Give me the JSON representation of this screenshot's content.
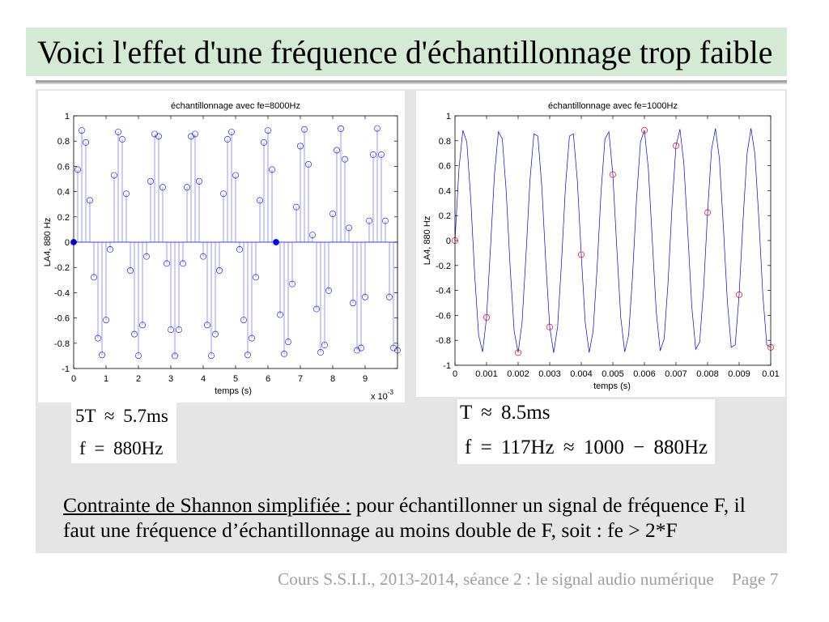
{
  "slide": {
    "title": "Voici l'effet d'une fréquence d'échantillonnage trop faible",
    "footer_course": "Cours S.S.I.I., 2013-2014, séance 2 : le signal audio numérique",
    "footer_page": "Page 7"
  },
  "equations": {
    "left_line1": "5T ≈ 5.7ms",
    "left_line2": "f = 880Hz",
    "right_line1": "T ≈ 8.5ms",
    "right_line2": "f = 117Hz ≈ 1000 − 880Hz"
  },
  "note": {
    "label": "Contrainte de Shannon simplifiée :",
    "line1": " pour échantillonner un signal de fréquence F, il",
    "line2": "faut une fréquence d’échantillonnage au moins double de F, soit : fe > 2*F"
  },
  "colors": {
    "title_bar": "#d5ead5",
    "panel": "#e5e5e5",
    "footer_text": "#a0a0a0"
  },
  "chart_data": [
    {
      "type": "scatter",
      "style": "stem",
      "title": "échantillonnage avec fe=8000Hz",
      "xlabel": "temps (s)",
      "ylabel": "LA4, 880 Hz",
      "xlim": [
        0,
        0.01
      ],
      "ylim": [
        -1,
        1
      ],
      "xticks": [
        0,
        0.001,
        0.002,
        0.003,
        0.004,
        0.005,
        0.006,
        0.007,
        0.008,
        0.009
      ],
      "xtick_labels": [
        "0",
        "1",
        "2",
        "3",
        "4",
        "5",
        "6",
        "7",
        "8",
        "9"
      ],
      "x_multiplier": "x 10",
      "x_multiplier_exp": "-3",
      "yticks": [
        1,
        0.8,
        0.6,
        0.4,
        0.2,
        0,
        -0.2,
        -0.4,
        -0.6,
        -0.8,
        -1
      ],
      "ytick_labels": [
        "1",
        "0.8",
        "0.6",
        "0.4",
        "0.2",
        "0",
        "-0.2",
        "-0.4",
        "-0.6",
        "-0.8",
        "-1"
      ],
      "grid": false,
      "series": [
        {
          "style": "stem",
          "marker": "open-circle",
          "color": "#0000ff",
          "x": [
            0,
            0.000125,
            0.00025,
            0.000375,
            0.0005,
            0.000625,
            0.00075,
            0.000875,
            0.001,
            0.001125,
            0.00125,
            0.001375,
            0.0015,
            0.001625,
            0.00175,
            0.001875,
            0.002,
            0.002125,
            0.00225,
            0.002375,
            0.0025,
            0.002625,
            0.00275,
            0.002875,
            0.003,
            0.003125,
            0.00325,
            0.003375,
            0.0035,
            0.003625,
            0.00375,
            0.003875,
            0.004,
            0.004125,
            0.00425,
            0.004375,
            0.0045,
            0.004625,
            0.00475,
            0.004875,
            0.005,
            0.005125,
            0.00525,
            0.005375,
            0.0055,
            0.005625,
            0.00575,
            0.005875,
            0.006,
            0.006125,
            0.00625,
            0.006375,
            0.0065,
            0.006625,
            0.00675,
            0.006875,
            0.007,
            0.007125,
            0.00725,
            0.007375,
            0.0075,
            0.007625,
            0.00775,
            0.007875,
            0.008,
            0.008125,
            0.00825,
            0.008375,
            0.0085,
            0.008625,
            0.00875,
            0.008875,
            0.009,
            0.009125,
            0.00925,
            0.009375,
            0.0095,
            0.009625,
            0.00975,
            0.009875,
            0.01
          ],
          "y": [
            0,
            0.574,
            0.884,
            0.789,
            0.331,
            -0.278,
            -0.76,
            -0.893,
            -0.616,
            -0.057,
            0.529,
            0.872,
            0.814,
            0.383,
            -0.224,
            -0.728,
            -0.898,
            -0.656,
            -0.113,
            0.482,
            0.856,
            0.837,
            0.434,
            -0.169,
            -0.693,
            -0.9,
            -0.693,
            -0.169,
            0.434,
            0.837,
            0.856,
            0.482,
            -0.113,
            -0.656,
            -0.898,
            -0.728,
            -0.224,
            0.383,
            0.814,
            0.872,
            0.529,
            -0.057,
            -0.616,
            -0.893,
            -0.76,
            -0.278,
            0.331,
            0.789,
            0.884,
            0.574,
            0,
            -0.574,
            -0.884,
            -0.789,
            -0.331,
            0.278,
            0.76,
            0.893,
            0.616,
            0.057,
            -0.529,
            -0.872,
            -0.814,
            -0.383,
            0.224,
            0.728,
            0.898,
            0.656,
            0.113,
            -0.482,
            -0.856,
            -0.837,
            -0.434,
            0.169,
            0.693,
            0.9,
            0.693,
            0.169,
            -0.434,
            -0.837,
            -0.856
          ]
        }
      ]
    },
    {
      "type": "line",
      "title": "échantillonnage avec fe=1000Hz",
      "xlabel": "temps (s)",
      "ylabel": "LA4, 880 Hz",
      "xlim": [
        0,
        0.01
      ],
      "ylim": [
        -1,
        1
      ],
      "xticks": [
        0,
        0.001,
        0.002,
        0.003,
        0.004,
        0.005,
        0.006,
        0.007,
        0.008,
        0.009,
        0.01
      ],
      "xtick_labels": [
        "0",
        "0.001",
        "0.002",
        "0.003",
        "0.004",
        "0.005",
        "0.006",
        "0.007",
        "0.008",
        "0.009",
        "0.01"
      ],
      "yticks": [
        1,
        0.8,
        0.6,
        0.4,
        0.2,
        0,
        -0.2,
        -0.4,
        -0.6,
        -0.8,
        -1
      ],
      "ytick_labels": [
        "1",
        "0.8",
        "0.6",
        "0.4",
        "0.2",
        "0",
        "-0.2",
        "-0.4",
        "-0.6",
        "-0.8",
        "-1"
      ],
      "grid": false,
      "series": [
        {
          "style": "line",
          "color": "#0000ff",
          "x": [
            0,
            0.000125,
            0.00025,
            0.000375,
            0.0005,
            0.000625,
            0.00075,
            0.000875,
            0.001,
            0.001125,
            0.00125,
            0.001375,
            0.0015,
            0.001625,
            0.00175,
            0.001875,
            0.002,
            0.002125,
            0.00225,
            0.002375,
            0.0025,
            0.002625,
            0.00275,
            0.002875,
            0.003,
            0.003125,
            0.00325,
            0.003375,
            0.0035,
            0.003625,
            0.00375,
            0.003875,
            0.004,
            0.004125,
            0.00425,
            0.004375,
            0.0045,
            0.004625,
            0.00475,
            0.004875,
            0.005,
            0.005125,
            0.00525,
            0.005375,
            0.0055,
            0.005625,
            0.00575,
            0.005875,
            0.006,
            0.006125,
            0.00625,
            0.006375,
            0.0065,
            0.006625,
            0.00675,
            0.006875,
            0.007,
            0.007125,
            0.00725,
            0.007375,
            0.0075,
            0.007625,
            0.00775,
            0.007875,
            0.008,
            0.008125,
            0.00825,
            0.008375,
            0.0085,
            0.008625,
            0.00875,
            0.008875,
            0.009,
            0.009125,
            0.00925,
            0.009375,
            0.0095,
            0.009625,
            0.00975,
            0.009875,
            0.01
          ],
          "y": [
            0,
            0.574,
            0.884,
            0.789,
            0.331,
            -0.278,
            -0.76,
            -0.893,
            -0.616,
            -0.057,
            0.529,
            0.872,
            0.814,
            0.383,
            -0.224,
            -0.728,
            -0.898,
            -0.656,
            -0.113,
            0.482,
            0.856,
            0.837,
            0.434,
            -0.169,
            -0.693,
            -0.9,
            -0.693,
            -0.169,
            0.434,
            0.837,
            0.856,
            0.482,
            -0.113,
            -0.656,
            -0.898,
            -0.728,
            -0.224,
            0.383,
            0.814,
            0.872,
            0.529,
            -0.057,
            -0.616,
            -0.893,
            -0.76,
            -0.278,
            0.331,
            0.789,
            0.884,
            0.574,
            0,
            -0.574,
            -0.884,
            -0.789,
            -0.331,
            0.278,
            0.76,
            0.893,
            0.616,
            0.057,
            -0.529,
            -0.872,
            -0.814,
            -0.383,
            0.224,
            0.728,
            0.898,
            0.656,
            0.113,
            -0.482,
            -0.856,
            -0.837,
            -0.434,
            0.169,
            0.693,
            0.9,
            0.693,
            0.169,
            -0.434,
            -0.837,
            -0.856
          ]
        },
        {
          "style": "markers",
          "marker": "open-circle",
          "color": "#ff0000",
          "x": [
            0,
            0.001,
            0.002,
            0.003,
            0.004,
            0.005,
            0.006,
            0.007,
            0.008,
            0.009,
            0.01
          ],
          "y": [
            0,
            -0.616,
            -0.898,
            -0.693,
            -0.113,
            0.529,
            0.884,
            0.76,
            0.224,
            -0.434,
            -0.856
          ]
        }
      ]
    }
  ]
}
